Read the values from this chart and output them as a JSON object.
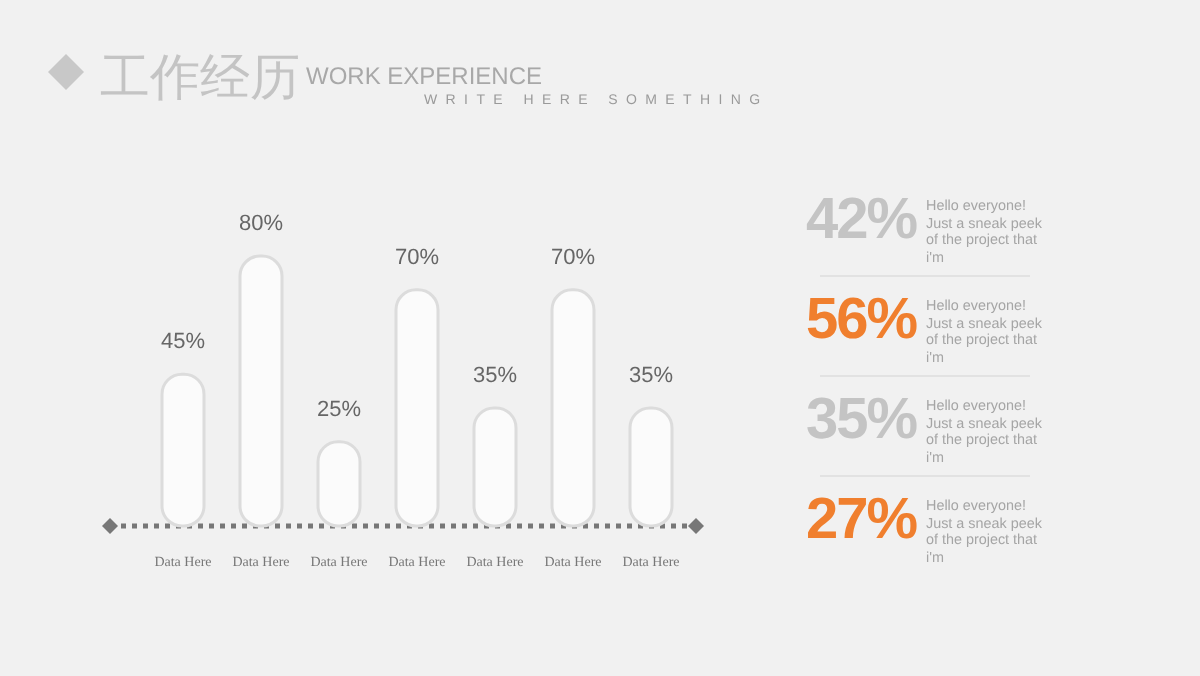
{
  "chart_data": [
    {
      "type": "bar",
      "title": "工作经历",
      "subtitle": "WORK EXPERIENCE",
      "annotations": [
        "WRITE HERE SOMETHING"
      ],
      "categories": [
        "Data Here",
        "Data Here",
        "Data Here",
        "Data Here",
        "Data Here",
        "Data Here",
        "Data Here"
      ],
      "values": [
        45,
        80,
        25,
        70,
        35,
        70,
        35
      ],
      "value_labels": [
        "45%",
        "80%",
        "25%",
        "70%",
        "35%",
        "70%",
        "35%"
      ],
      "color": "#fbfbfb",
      "ref_lines": [
        {
          "axis": "y",
          "value": 0,
          "color": "#777777",
          "line_style": "dotted"
        }
      ]
    },
    {
      "type": "other",
      "categories": [
        "Hello everyone! Just a sneak peek of the project that i'm",
        "Hello everyone! Just a sneak peek of the project that i'm",
        "Hello everyone! Just a sneak peek of the project that i'm",
        "Hello everyone! Just a sneak peek of the project that i'm"
      ],
      "values": [
        42,
        56,
        35,
        27
      ],
      "value_labels": [
        "42%",
        "56%",
        "35%",
        "27%"
      ],
      "colors": [
        "#c4c4c4",
        "#f07f2e",
        "#c4c4c4",
        "#f07f2e"
      ]
    }
  ]
}
